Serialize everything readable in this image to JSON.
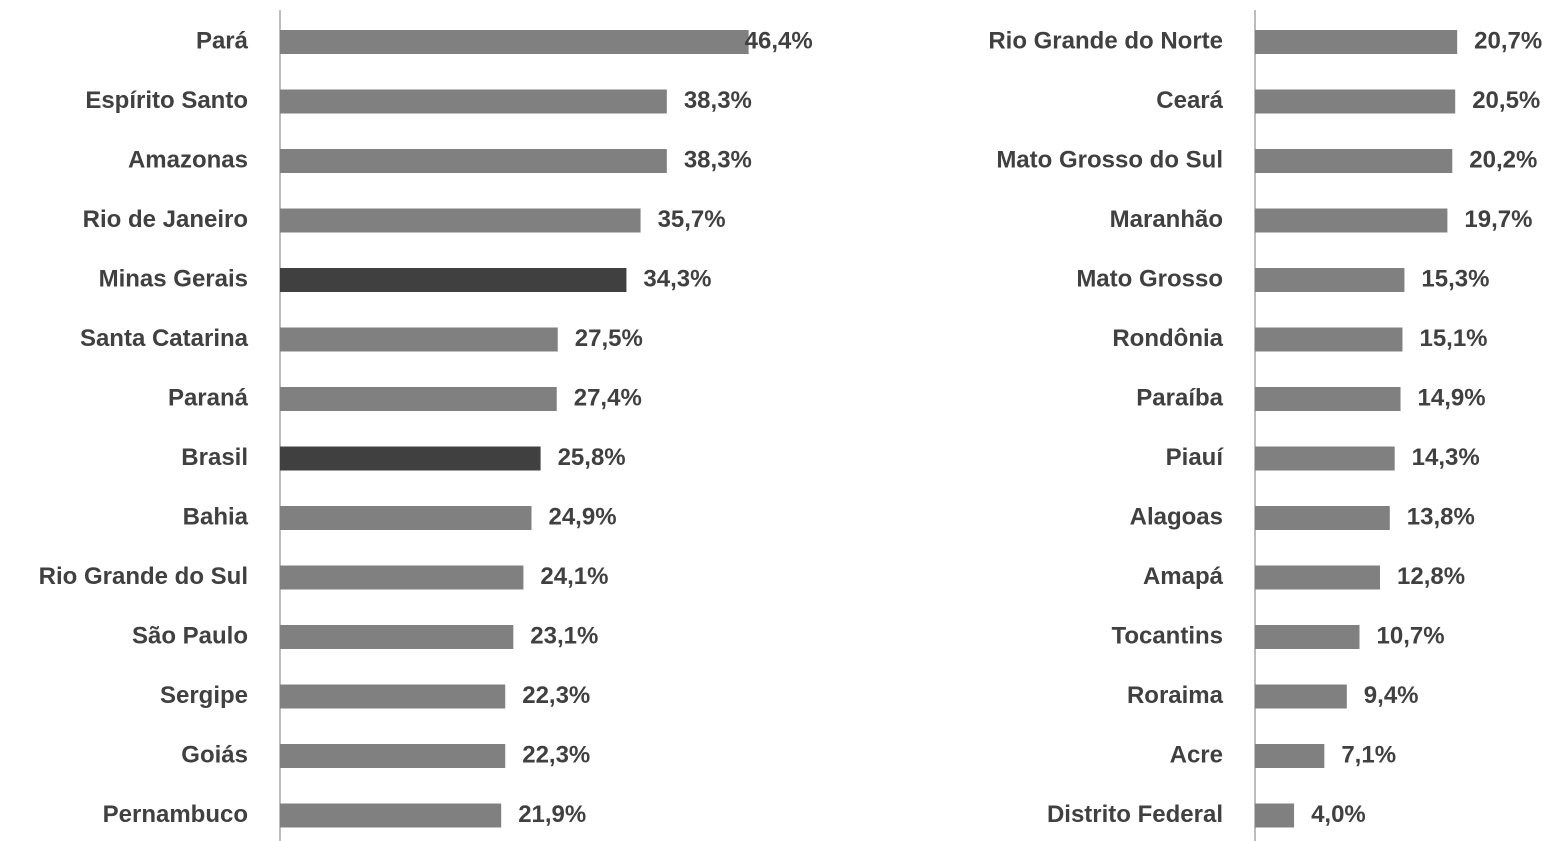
{
  "chart_data": [
    {
      "type": "bar",
      "orientation": "horizontal",
      "categories": [
        "Pará",
        "Espírito Santo",
        "Amazonas",
        "Rio de Janeiro",
        "Minas Gerais",
        "Santa Catarina",
        "Paraná",
        "Brasil",
        "Bahia",
        "Rio Grande do Sul",
        "São Paulo",
        "Sergipe",
        "Goiás",
        "Pernambuco"
      ],
      "values": [
        46.4,
        38.3,
        38.3,
        35.7,
        34.3,
        27.5,
        27.4,
        25.8,
        24.9,
        24.1,
        23.1,
        22.3,
        22.3,
        21.9
      ],
      "value_labels": [
        "46,4%",
        "38,3%",
        "38,3%",
        "35,7%",
        "34,3%",
        "27,5%",
        "27,4%",
        "25,8%",
        "24,9%",
        "24,1%",
        "23,1%",
        "22,3%",
        "22,3%",
        "21,9%"
      ],
      "colors": [
        "#808080",
        "#808080",
        "#808080",
        "#808080",
        "#404040",
        "#808080",
        "#808080",
        "#404040",
        "#808080",
        "#808080",
        "#808080",
        "#808080",
        "#808080",
        "#808080"
      ],
      "xlim": [
        0,
        50
      ]
    },
    {
      "type": "bar",
      "orientation": "horizontal",
      "categories": [
        "Rio Grande do Norte",
        "Ceará",
        "Mato Grosso do Sul",
        "Maranhão",
        "Mato Grosso",
        "Rondônia",
        "Paraíba",
        "Piauí",
        "Alagoas",
        "Amapá",
        "Tocantins",
        "Roraima",
        "Acre",
        "Distrito Federal"
      ],
      "values": [
        20.7,
        20.5,
        20.2,
        19.7,
        15.3,
        15.1,
        14.9,
        14.3,
        13.8,
        12.8,
        10.7,
        9.4,
        7.1,
        4.0
      ],
      "value_labels": [
        "20,7%",
        "20,5%",
        "20,2%",
        "19,7%",
        "15,3%",
        "15,1%",
        "14,9%",
        "14,3%",
        "13,8%",
        "12,8%",
        "10,7%",
        "9,4%",
        "7,1%",
        "4,0%"
      ],
      "colors": [
        "#808080",
        "#808080",
        "#808080",
        "#808080",
        "#808080",
        "#808080",
        "#808080",
        "#808080",
        "#808080",
        "#808080",
        "#808080",
        "#808080",
        "#808080",
        "#808080"
      ],
      "xlim": [
        0,
        30
      ]
    }
  ]
}
